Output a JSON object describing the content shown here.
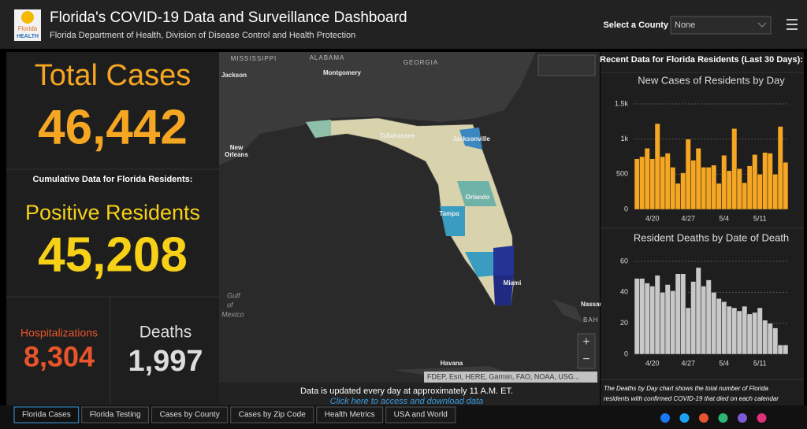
{
  "header": {
    "logo_top": "Florida",
    "logo_bottom": "HEALTH",
    "title": "Florida's COVID-19 Data and Surveillance Dashboard",
    "subtitle": "Florida Department of Health, Division of Disease Control and Health Protection",
    "select_label": "Select a County",
    "select_value": "None"
  },
  "summary": {
    "total_cases_label": "Total Cases",
    "total_cases": "46,442",
    "cumulative_label": "Cumulative Data for Florida Residents:",
    "positive_label": "Positive Residents",
    "positive_residents": "45,208",
    "hospitalizations_label": "Hospitalizations",
    "hospitalizations": "8,304",
    "deaths_label": "Deaths",
    "deaths": "1,997"
  },
  "map": {
    "labels": [
      "MISSISSIPPI",
      "ALABAMA",
      "GEORGIA",
      "Jackson",
      "Montgomery",
      "New",
      "Orleans",
      "Tallahassee",
      "Jacksonville",
      "Orlando",
      "Tampa",
      "Miami",
      "Gulf",
      "of",
      "Mexico",
      "Nassau",
      "BAH",
      "Havana"
    ],
    "attribution": "FDEP, Esri, HERE, Garmin, FAO, NOAA, USG...",
    "update_note": "Data is updated every day at approximately 11 A.M. ET.",
    "download_link": "Click here to access and download data"
  },
  "right_panel": {
    "title": "Recent Data for Florida Residents (Last 30 Days):",
    "note_line1": "The Deaths by Day chart shows the total number of Florida",
    "note_line2": "residents with confirmed COVID-19 that died on each calendar"
  },
  "chart_data": [
    {
      "type": "bar",
      "title": "New Cases of Residents by Day",
      "color": "#f5a623",
      "grid": true,
      "categories": [
        null,
        null,
        null,
        "4/20",
        null,
        null,
        null,
        null,
        null,
        null,
        "4/27",
        null,
        null,
        null,
        null,
        null,
        null,
        "5/4",
        null,
        null,
        null,
        null,
        null,
        null,
        "5/11",
        null,
        null,
        null,
        null,
        null
      ],
      "values": [
        720,
        750,
        870,
        720,
        1220,
        750,
        800,
        600,
        370,
        520,
        1000,
        700,
        870,
        600,
        600,
        630,
        370,
        770,
        550,
        1150,
        580,
        380,
        620,
        780,
        500,
        810,
        800,
        500,
        1180,
        670
      ],
      "ylim": [
        0,
        1500
      ],
      "yticks": [
        0,
        500,
        {
          "value": 1000,
          "label": "1k"
        },
        {
          "value": 1500,
          "label": "1.5k"
        }
      ]
    },
    {
      "type": "bar",
      "title": "Resident Deaths by Date of Death",
      "color": "#c8c8c8",
      "grid": true,
      "categories": [
        null,
        null,
        null,
        "4/20",
        null,
        null,
        null,
        null,
        null,
        null,
        "4/27",
        null,
        null,
        null,
        null,
        null,
        null,
        "5/4",
        null,
        null,
        null,
        null,
        null,
        null,
        "5/11",
        null,
        null,
        null,
        null,
        null
      ],
      "values": [
        49,
        49,
        46,
        44,
        51,
        40,
        45,
        41,
        52,
        52,
        30,
        47,
        56,
        44,
        48,
        40,
        36,
        34,
        31,
        30,
        28,
        31,
        26,
        27,
        30,
        22,
        20,
        17,
        6,
        6
      ],
      "ylim": [
        0,
        60
      ],
      "yticks": [
        0,
        20,
        40,
        60
      ]
    }
  ],
  "tabs": [
    "Florida Cases",
    "Florida Testing",
    "Cases by County",
    "Cases by Zip Code",
    "Health Metrics",
    "USA and World"
  ]
}
